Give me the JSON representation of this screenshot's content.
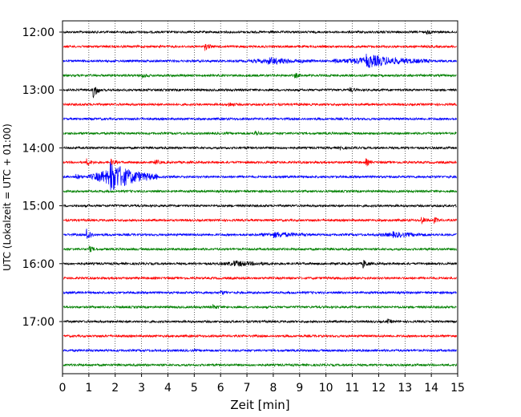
{
  "chart_data": {
    "type": "line",
    "title": "",
    "xlabel": "Zeit  [min]",
    "ylabel": "UTC (Lokalzeit = UTC + 01:00)",
    "xlim": [
      0,
      15
    ],
    "x_ticks": [
      0,
      1,
      2,
      3,
      4,
      5,
      6,
      7,
      8,
      9,
      10,
      11,
      12,
      13,
      14,
      15
    ],
    "y_tick_labels": [
      "12:00",
      "13:00",
      "14:00",
      "15:00",
      "16:00",
      "17:00"
    ],
    "grid": "vertical dotted at each minute",
    "row_colors": [
      "#000000",
      "#ff0000",
      "#0000ff",
      "#008000"
    ],
    "rows": [
      {
        "start": "12:00",
        "events": [
          {
            "t": 13.8,
            "amp": 0.25
          }
        ]
      },
      {
        "start": "12:15",
        "events": [
          {
            "t": 5.4,
            "amp": 0.5
          }
        ]
      },
      {
        "start": "12:30",
        "events": [
          {
            "t": 7.8,
            "amp": 0.45,
            "dur": 1.8
          },
          {
            "t": 10.3,
            "amp": 0.35
          },
          {
            "t": 11.5,
            "amp": 0.9,
            "dur": 2.5
          }
        ]
      },
      {
        "start": "12:45",
        "events": [
          {
            "t": 3.0,
            "amp": 0.4
          },
          {
            "t": 8.8,
            "amp": 0.35
          }
        ]
      },
      {
        "start": "13:00",
        "events": [
          {
            "t": 1.15,
            "amp": 1.2
          },
          {
            "t": 10.9,
            "amp": 0.3
          }
        ]
      },
      {
        "start": "13:15",
        "events": [
          {
            "t": 6.3,
            "amp": 0.3
          }
        ]
      },
      {
        "start": "13:30",
        "events": []
      },
      {
        "start": "13:45",
        "events": [
          {
            "t": 7.3,
            "amp": 0.4
          }
        ]
      },
      {
        "start": "14:00",
        "events": [
          {
            "t": 10.5,
            "amp": 0.25
          }
        ]
      },
      {
        "start": "14:15",
        "events": [
          {
            "t": 0.9,
            "amp": 0.5
          },
          {
            "t": 1.8,
            "amp": 0.5
          },
          {
            "t": 3.5,
            "amp": 0.4
          },
          {
            "t": 11.5,
            "amp": 0.5
          }
        ]
      },
      {
        "start": "14:30",
        "events": [
          {
            "t": 0.5,
            "amp": 0.4
          },
          {
            "t": 1.8,
            "amp": 2.2,
            "dur": 1.8
          }
        ]
      },
      {
        "start": "14:45",
        "events": []
      },
      {
        "start": "15:00",
        "events": []
      },
      {
        "start": "15:15",
        "events": [
          {
            "t": 13.6,
            "amp": 0.55
          },
          {
            "t": 14.1,
            "amp": 0.4
          }
        ]
      },
      {
        "start": "15:30",
        "events": [
          {
            "t": 0.9,
            "amp": 1.1
          },
          {
            "t": 8.0,
            "amp": 0.35,
            "dur": 1.5
          },
          {
            "t": 12.5,
            "amp": 0.35,
            "dur": 1.5
          }
        ]
      },
      {
        "start": "15:45",
        "events": [
          {
            "t": 1.0,
            "amp": 0.4
          }
        ]
      },
      {
        "start": "16:00",
        "events": [
          {
            "t": 6.5,
            "amp": 0.35,
            "dur": 1.5
          },
          {
            "t": 11.4,
            "amp": 0.6
          }
        ]
      },
      {
        "start": "16:15",
        "events": []
      },
      {
        "start": "16:30",
        "events": [
          {
            "t": 6.0,
            "amp": 0.25
          }
        ]
      },
      {
        "start": "16:45",
        "events": [
          {
            "t": 5.7,
            "amp": 0.3
          }
        ]
      },
      {
        "start": "17:00",
        "events": [
          {
            "t": 12.3,
            "amp": 0.3
          }
        ]
      },
      {
        "start": "17:15",
        "events": []
      },
      {
        "start": "17:30",
        "events": []
      },
      {
        "start": "17:45",
        "events": []
      }
    ]
  }
}
